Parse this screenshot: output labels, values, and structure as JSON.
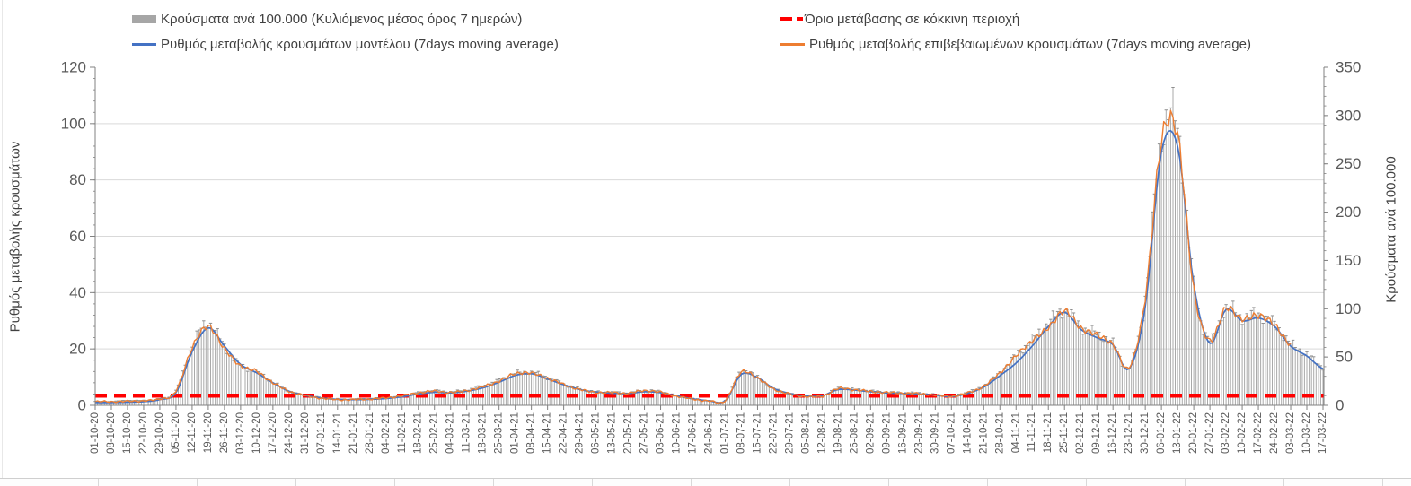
{
  "legend": {
    "items": [
      {
        "label": "Κρούσματα ανά 100.000 (Κυλιόμενος μέσος όρος 7 ημερών)",
        "swatch": "bar",
        "color": "#a6a6a6"
      },
      {
        "label": "Ρυθμός μεταβολής κρουσμάτων μοντέλου (7days moving average)",
        "swatch": "line",
        "color": "#4472c4"
      },
      {
        "label": "Όριο μετάβασης σε κόκκινη περιοχή",
        "swatch": "dashed-line",
        "color": "#ff0000"
      },
      {
        "label": "Ρυθμός μεταβολής επιβεβαιωμένων κρουσμάτων (7days moving average)",
        "swatch": "line",
        "color": "#ed7d31"
      }
    ]
  },
  "chart_data": {
    "type": "combo",
    "x": [
      "01-10-20",
      "08-10-20",
      "15-10-20",
      "22-10-20",
      "29-10-20",
      "05-11-20",
      "12-11-20",
      "19-11-20",
      "26-11-20",
      "03-12-20",
      "10-12-20",
      "17-12-20",
      "24-12-20",
      "31-12-20",
      "07-01-21",
      "14-01-21",
      "21-01-21",
      "28-01-21",
      "04-02-21",
      "11-02-21",
      "18-02-21",
      "25-02-21",
      "04-03-21",
      "11-03-21",
      "18-03-21",
      "25-03-21",
      "01-04-21",
      "08-04-21",
      "15-04-21",
      "22-04-21",
      "29-04-21",
      "06-05-21",
      "13-05-21",
      "20-05-21",
      "27-05-21",
      "03-06-21",
      "10-06-21",
      "17-06-21",
      "24-06-21",
      "01-07-21",
      "08-07-21",
      "15-07-21",
      "22-07-21",
      "29-07-21",
      "05-08-21",
      "12-08-21",
      "19-08-21",
      "26-08-21",
      "02-09-21",
      "09-09-21",
      "16-09-21",
      "23-09-21",
      "30-09-21",
      "07-10-21",
      "14-10-21",
      "21-10-21",
      "28-10-21",
      "04-11-21",
      "11-11-21",
      "18-11-21",
      "25-11-21",
      "02-12-21",
      "09-12-21",
      "16-12-21",
      "23-12-21",
      "30-12-21",
      "06-01-22",
      "13-01-22",
      "20-01-22",
      "27-01-22",
      "03-02-22",
      "10-02-22",
      "17-02-22",
      "24-02-22",
      "03-03-22",
      "10-03-22",
      "17-03-22"
    ],
    "left_axis": {
      "label": "Ρυθμός μεταβολής κρουσμάτων",
      "min": 0,
      "max": 120,
      "ticks": [
        0,
        20,
        40,
        60,
        80,
        100,
        120
      ],
      "minor_step": 4
    },
    "right_axis": {
      "label": "Κρούσματα ανά 100.000",
      "min": 0,
      "max": 350,
      "ticks": [
        0,
        50,
        100,
        150,
        200,
        250,
        300,
        350
      ],
      "minor_step": 10
    },
    "grid": "horizontal",
    "legend_position": "top",
    "series": [
      {
        "name": "Κρούσματα ανά 100.000 (Κυλιόμενος μέσος όρος 7 ημερών)",
        "type": "bar",
        "axis": "right",
        "color": "#a9a9a9",
        "values": [
          4,
          4,
          5,
          5,
          7,
          15,
          62,
          85,
          61,
          42,
          35,
          24,
          15,
          10,
          8,
          6.5,
          6.5,
          7,
          8,
          10,
          13,
          15,
          14,
          16,
          20,
          26,
          33,
          34,
          29,
          22,
          17,
          14,
          13.5,
          13,
          15.5,
          14,
          10,
          7,
          5,
          5,
          35,
          29,
          17.5,
          12,
          9.5,
          10,
          17.5,
          16.5,
          15,
          13.5,
          13,
          12.5,
          11,
          10,
          13.5,
          20,
          34,
          52,
          68,
          85,
          99,
          82,
          74,
          64,
          40,
          112,
          278,
          288,
          125,
          68,
          101,
          91,
          95,
          84,
          64,
          53,
          40
        ]
      },
      {
        "name": "Ρυθμός μεταβολής κρουσμάτων μοντέλου (7days moving average)",
        "type": "line",
        "axis": "left",
        "color": "#4472c4",
        "values": [
          1.0,
          1.0,
          1.1,
          1.3,
          2.0,
          4.5,
          19,
          27.5,
          21,
          14.5,
          11.5,
          8,
          5,
          3.5,
          2.6,
          2.1,
          2.0,
          2.1,
          2.4,
          3.0,
          4.0,
          4.6,
          4.4,
          5.0,
          6.2,
          8.2,
          10.6,
          11.2,
          9.4,
          7.3,
          5.6,
          4.7,
          4.3,
          4.2,
          4.8,
          4.5,
          3.3,
          2.3,
          1.6,
          1.6,
          11.0,
          9.8,
          6.0,
          4.2,
          3.3,
          3.4,
          5.6,
          5.4,
          4.8,
          4.4,
          4.2,
          4.0,
          3.6,
          3.1,
          4.2,
          6.5,
          10.5,
          15.0,
          21.0,
          28.0,
          33.0,
          27.0,
          24.0,
          21.5,
          13.0,
          35.0,
          90.0,
          92.0,
          43.0,
          22.0,
          34.0,
          30.0,
          31.0,
          28.0,
          21.0,
          17.5,
          13.0
        ]
      },
      {
        "name": "Ρυθμός μεταβολής επιβεβαιωμένων κρουσμάτων (7days moving average)",
        "type": "line",
        "axis": "left",
        "color": "#ed7d31",
        "values": [
          1.3,
          1.3,
          1.4,
          1.6,
          2.2,
          5.0,
          20.5,
          28.0,
          20.0,
          14.0,
          12.0,
          8.0,
          5.0,
          3.4,
          2.5,
          2.0,
          2.0,
          2.2,
          2.6,
          3.4,
          4.4,
          5.0,
          4.5,
          5.2,
          6.6,
          8.6,
          11.2,
          11.4,
          9.6,
          7.4,
          5.6,
          4.6,
          4.5,
          4.3,
          5.2,
          4.6,
          3.2,
          2.2,
          1.5,
          1.7,
          11.8,
          9.6,
          5.8,
          4.0,
          3.1,
          3.2,
          5.9,
          5.5,
          4.9,
          4.5,
          4.3,
          4.1,
          3.6,
          3.2,
          4.4,
          6.8,
          11.5,
          17.5,
          23.0,
          27.5,
          33.5,
          27.5,
          25.0,
          21.5,
          13.5,
          38.0,
          94.0,
          96.0,
          41.0,
          23.0,
          34.5,
          30.5,
          32.0,
          28.5,
          21.5,
          null,
          null
        ]
      },
      {
        "name": "Όριο μετάβασης σε κόκκινη περιοχή",
        "type": "threshold",
        "axis": "right",
        "color": "#ff0000",
        "value": 10
      }
    ]
  }
}
